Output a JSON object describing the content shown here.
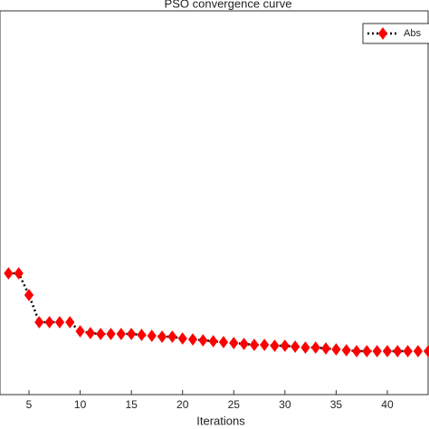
{
  "chart_data": {
    "type": "line",
    "title": "PSO convergence curve",
    "x_label": "Iterations",
    "x": [
      3,
      4,
      5,
      6,
      7,
      8,
      9,
      10,
      11,
      12,
      13,
      14,
      15,
      16,
      17,
      18,
      19,
      20,
      21,
      22,
      23,
      24,
      25,
      26,
      27,
      28,
      29,
      30,
      31,
      32,
      33,
      34,
      35,
      36,
      37,
      38,
      39,
      40,
      41,
      42,
      43,
      44
    ],
    "series": [
      {
        "name": "Abs",
        "color": "#ff0000",
        "line_color": "#000000",
        "values": [
          134,
          134,
          110,
          80,
          80,
          80,
          80,
          70,
          68,
          67,
          67,
          67,
          67,
          66,
          65,
          64,
          64,
          62,
          61,
          60,
          59,
          58,
          57,
          56,
          55,
          55,
          54,
          54,
          53,
          52,
          52,
          51,
          50,
          49,
          48,
          48,
          48,
          48,
          48,
          48,
          48,
          48
        ]
      }
    ],
    "xlim": [
      2.17,
      44.07
    ],
    "xticks": [
      5,
      10,
      15,
      20,
      25,
      30,
      35,
      40
    ],
    "ylim": [
      0,
      424
    ],
    "legend": "top-right"
  }
}
